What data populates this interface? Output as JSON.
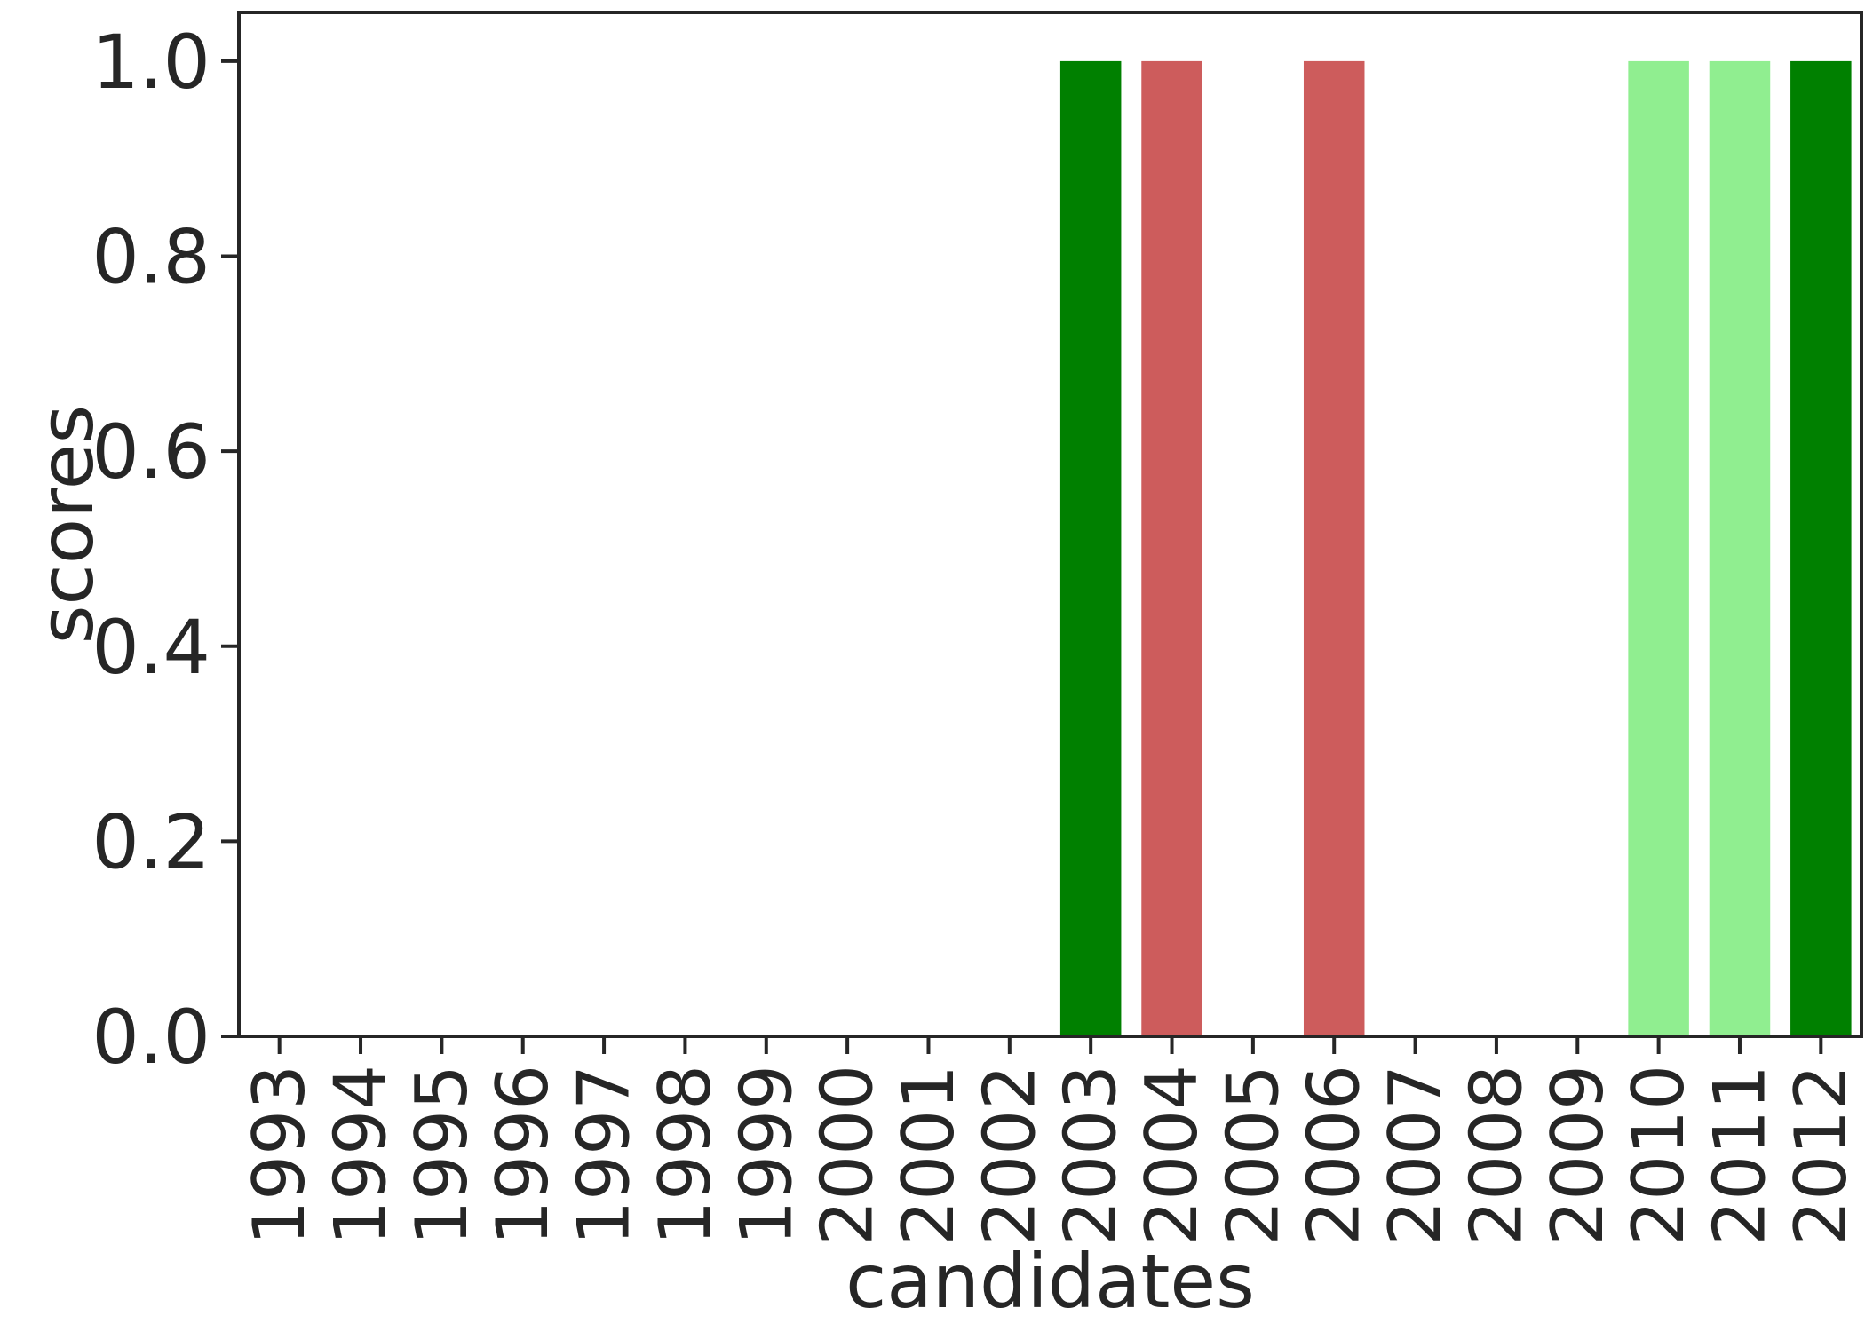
{
  "chart_data": {
    "type": "bar",
    "categories": [
      "1993",
      "1994",
      "1995",
      "1996",
      "1997",
      "1998",
      "1999",
      "2000",
      "2001",
      "2002",
      "2003",
      "2004",
      "2005",
      "2006",
      "2007",
      "2008",
      "2009",
      "2010",
      "2011",
      "2012"
    ],
    "values": [
      0,
      0,
      0,
      0,
      0,
      0,
      0,
      0,
      0,
      0,
      1.0,
      1.0,
      0,
      1.0,
      0,
      0,
      0,
      1.0,
      1.0,
      1.0
    ],
    "bar_colors": [
      "#008000",
      "#008000",
      "#008000",
      "#008000",
      "#008000",
      "#008000",
      "#008000",
      "#008000",
      "#008000",
      "#008000",
      "#008000",
      "#cd5c5c",
      "#008000",
      "#cd5c5c",
      "#008000",
      "#008000",
      "#008000",
      "#90ee90",
      "#90ee90",
      "#008000"
    ],
    "xlabel": "candidates",
    "ylabel": "scores",
    "ylim": [
      0,
      1.05
    ],
    "yticks": [
      0.0,
      0.2,
      0.4,
      0.6,
      0.8,
      1.0
    ],
    "ytick_labels": [
      "0.0",
      "0.2",
      "0.4",
      "0.6",
      "0.8",
      "1.0"
    ],
    "grid": false,
    "axis_color": "#262626"
  }
}
